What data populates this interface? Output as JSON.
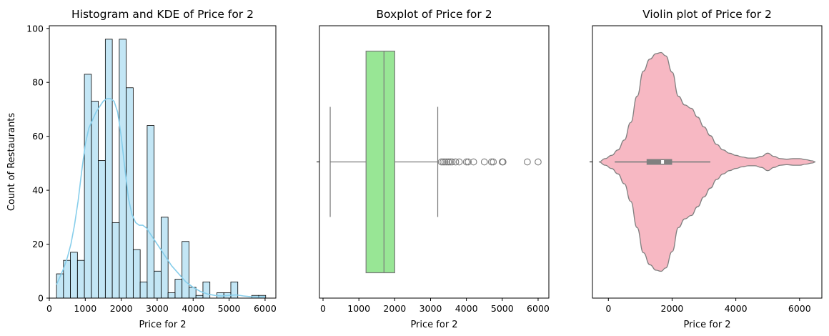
{
  "chart_data": [
    {
      "type": "bar",
      "title": "Histogram and KDE of Price for 2",
      "xlabel": "Price for 2",
      "ylabel": "Count of Restaurants",
      "xlim": [
        0,
        6300
      ],
      "ylim": [
        0,
        101
      ],
      "xticks": [
        0,
        1000,
        2000,
        3000,
        4000,
        5000,
        6000
      ],
      "yticks": [
        0,
        20,
        40,
        60,
        80,
        100
      ],
      "bar_color": "#87ceeb",
      "kde_color": "#87ceeb",
      "bin_width": 193.9,
      "bins_start": [
        200,
        393.9,
        587.8,
        781.7,
        975.6,
        1169.5,
        1363.4,
        1557.3,
        1751.2,
        1945.1,
        2139.0,
        2332.9,
        2526.8,
        2720.7,
        2914.6,
        3108.5,
        3302.4,
        3496.3,
        3690.2,
        3884.1,
        4078.0,
        4271.9,
        4465.8,
        4659.7,
        4853.6,
        5047.5,
        5241.4,
        5435.3,
        5629.2,
        5823.1
      ],
      "values": [
        9,
        14,
        17,
        14,
        83,
        73,
        51,
        96,
        28,
        96,
        78,
        18,
        6,
        64,
        10,
        30,
        2,
        7,
        21,
        4,
        1,
        6,
        0,
        2,
        2,
        6,
        0,
        0,
        1,
        1
      ],
      "kde": {
        "x": [
          200,
          300,
          400,
          500,
          600,
          700,
          800,
          900,
          1000,
          1100,
          1200,
          1300,
          1400,
          1500,
          1600,
          1700,
          1800,
          1900,
          2000,
          2100,
          2200,
          2300,
          2400,
          2500,
          2600,
          2700,
          2800,
          2900,
          3000,
          3200,
          3400,
          3600,
          3800,
          4000,
          4200,
          4400,
          4600,
          4800,
          5000,
          5200,
          5400,
          5600,
          5800,
          6000
        ],
        "y": [
          5,
          8,
          11,
          15,
          20,
          27,
          36,
          47,
          57,
          63,
          66,
          69,
          71,
          73,
          74,
          74,
          73,
          69,
          60,
          48,
          37,
          31,
          28,
          27,
          27,
          26,
          24,
          22,
          20,
          16,
          12,
          9,
          6,
          4,
          2.5,
          1.5,
          1,
          0.8,
          1,
          1.2,
          0.8,
          0.5,
          0.4,
          0.5
        ]
      }
    },
    {
      "type": "box",
      "title": "Boxplot of Price for 2",
      "xlabel": "Price for 2",
      "xlim": [
        -100,
        6300
      ],
      "xticks": [
        0,
        1000,
        2000,
        3000,
        4000,
        5000,
        6000
      ],
      "box_color": "#98e695",
      "line_color": "#7a7a7a",
      "whisker_low": 200,
      "q1": 1200,
      "median": 1700,
      "q3": 2000,
      "whisker_high": 3200,
      "outliers": [
        3300,
        3350,
        3400,
        3450,
        3500,
        3550,
        3600,
        3700,
        3800,
        4000,
        4050,
        4200,
        4500,
        4700,
        4750,
        5000,
        5020,
        5700,
        6000
      ]
    },
    {
      "type": "violin",
      "title": "Violin plot of Price for 2",
      "xlabel": "Price for 2",
      "xlim": [
        -500,
        6700
      ],
      "xticks": [
        0,
        2000,
        4000,
        6000
      ],
      "fill_color": "#f7b8c3",
      "edge_color": "#808080",
      "inner_box_color": "#808080",
      "density": {
        "x": [
          -300,
          -100,
          100,
          300,
          500,
          700,
          900,
          1100,
          1300,
          1500,
          1650,
          1800,
          2000,
          2200,
          2400,
          2600,
          2800,
          3000,
          3200,
          3400,
          3600,
          3800,
          4000,
          4200,
          4400,
          4600,
          4800,
          5000,
          5200,
          5400,
          5600,
          5800,
          6000,
          6200,
          6400,
          6500
        ],
        "half_width": [
          0,
          0.03,
          0.06,
          0.11,
          0.2,
          0.36,
          0.6,
          0.83,
          0.94,
          0.99,
          1.0,
          0.97,
          0.82,
          0.6,
          0.52,
          0.49,
          0.41,
          0.32,
          0.24,
          0.16,
          0.11,
          0.08,
          0.06,
          0.045,
          0.035,
          0.035,
          0.05,
          0.08,
          0.05,
          0.03,
          0.025,
          0.03,
          0.03,
          0.02,
          0.01,
          0
        ]
      },
      "whisker_low": 200,
      "q1": 1200,
      "median": 1700,
      "q3": 2000,
      "whisker_high": 3200
    }
  ]
}
